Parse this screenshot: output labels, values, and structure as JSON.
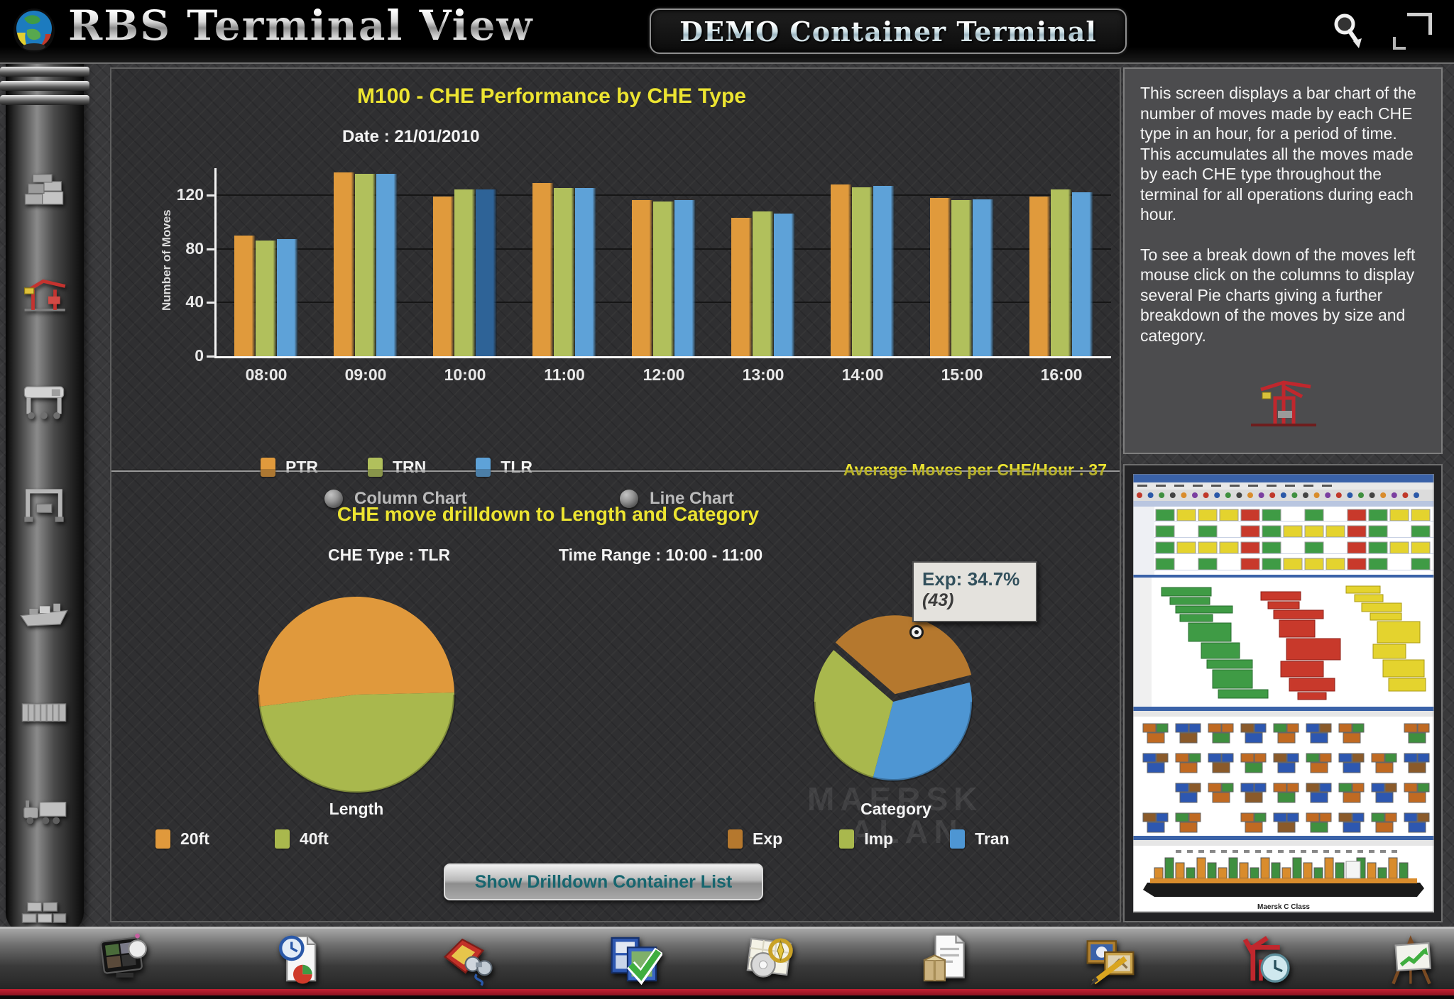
{
  "header": {
    "app_title": "RBS Terminal View",
    "terminal_name": "DEMO Container Terminal",
    "logo": "globe-logo",
    "icons": [
      "magnifier-icon",
      "window-corner-icon"
    ]
  },
  "sidebar": {
    "items": [
      {
        "name": "container-stack"
      },
      {
        "name": "quay-crane",
        "active": true
      },
      {
        "name": "straddle-carrier"
      },
      {
        "name": "rtg-crane"
      },
      {
        "name": "vessel"
      },
      {
        "name": "container"
      },
      {
        "name": "truck"
      },
      {
        "name": "yard-stacks"
      }
    ]
  },
  "performance": {
    "chart_options": [
      {
        "label": "Column Chart"
      },
      {
        "label": "Line Chart"
      }
    ]
  },
  "drilldown": {
    "title": "CHE move drilldown to Length and Category",
    "che_type_label": "CHE Type : TLR",
    "time_range_label": "Time Range : 10:00 - 11:00",
    "tooltip": {
      "line1": "Exp:  34.7%",
      "line2": "(43)"
    },
    "watermark": {
      "line1": "MAERSK",
      "line2": "ALAN"
    },
    "button_label": "Show Drilldown Container List"
  },
  "info": {
    "paragraph1": "This screen displays a bar chart of the number of moves made by each CHE type in an hour,  for a period of time. This accumulates all the moves made by each CHE type  throughout the terminal for all operations during each hour.",
    "paragraph2": "To see a break down of the moves left mouse click on the columns to display several  Pie charts giving a further breakdown of the moves by size and category."
  },
  "preview": {
    "caption": "Maersk C Class"
  },
  "toolbar": {
    "icons": [
      "screens-gallery-icon",
      "report-clock-icon",
      "folder-binoculars-icon",
      "tasks-check-icon",
      "map-compass-icon",
      "package-document-icon",
      "pictures-pencil-icon",
      "crane-clock-icon",
      "chart-easel-icon"
    ]
  },
  "chart_data": [
    {
      "id": "che_performance",
      "type": "bar",
      "title": "M100 - CHE Performance by CHE Type",
      "subtitle": "Date : 21/01/2010",
      "xlabel": "",
      "ylabel": "Number of Moves",
      "ylim": [
        0,
        140
      ],
      "yticks": [
        0,
        40,
        80,
        120
      ],
      "grid": true,
      "legend_position": "bottom-left",
      "categories": [
        "08:00",
        "09:00",
        "10:00",
        "11:00",
        "12:00",
        "13:00",
        "14:00",
        "15:00",
        "16:00"
      ],
      "series": [
        {
          "name": "PTR",
          "color": "#e09a3c",
          "values": [
            90,
            137,
            119,
            129,
            116,
            103,
            128,
            118,
            119
          ]
        },
        {
          "name": "TRN",
          "color": "#b1c05c",
          "values": [
            86,
            136,
            124,
            125,
            115,
            108,
            126,
            116,
            124
          ]
        },
        {
          "name": "TLR",
          "color": "#5ea2d8",
          "values": [
            87,
            136,
            124,
            125,
            116,
            106,
            127,
            117,
            122
          ]
        }
      ],
      "highlight": {
        "series": "TLR",
        "category": "10:00",
        "color": "#2e6397"
      },
      "footnote": "Average Moves per CHE/Hour : 37"
    },
    {
      "id": "length_pie",
      "type": "pie",
      "title": "Length",
      "start_angle": -97,
      "radius": 138,
      "slices": [
        {
          "label": "20ft",
          "value": 64,
          "percent": "51.6%",
          "color": "#e0993c"
        },
        {
          "label": "40ft",
          "value": 60,
          "percent": "48.4%",
          "color": "#a9b84d"
        }
      ],
      "legend": [
        "20ft",
        "40ft"
      ]
    },
    {
      "id": "category_pie",
      "type": "pie",
      "title": "Category",
      "start_angle": -49,
      "radius": 111,
      "slices": [
        {
          "label": "Exp",
          "value": 43,
          "percent": "34.7%",
          "color": "#b5782e",
          "exploded": true
        },
        {
          "label": "Tran",
          "value": 41,
          "percent": "33.0%",
          "color": "#4e96d3"
        },
        {
          "label": "Imp",
          "value": 40,
          "percent": "32.3%",
          "color": "#a9b84d"
        }
      ],
      "legend": [
        "Exp",
        "Imp",
        "Tran"
      ]
    }
  ]
}
